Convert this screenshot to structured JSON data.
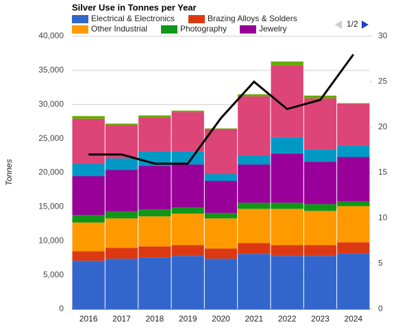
{
  "chart_data": {
    "type": "bar",
    "stacked": true,
    "title": "Silver Use in Tonnes per Year",
    "y_label": "Tonnes",
    "legend_page": "1/2",
    "categories": [
      "2016",
      "2017",
      "2018",
      "2019",
      "2020",
      "2021",
      "2022",
      "2023",
      "2024"
    ],
    "series": [
      {
        "name": "Electrical & Electronics",
        "color": "#3366cc",
        "values": [
          7100,
          7400,
          7600,
          7800,
          7400,
          8100,
          7800,
          7800,
          8200
        ]
      },
      {
        "name": "Brazing Alloys & Solders",
        "color": "#dc3912",
        "values": [
          1400,
          1600,
          1600,
          1600,
          1500,
          1600,
          1600,
          1600,
          1600
        ]
      },
      {
        "name": "Other Industrial",
        "color": "#ff9900",
        "values": [
          4200,
          4300,
          4400,
          4600,
          4400,
          5000,
          5300,
          5000,
          5300
        ]
      },
      {
        "name": "Photography",
        "color": "#109618",
        "values": [
          1100,
          1000,
          1000,
          900,
          800,
          900,
          900,
          1000,
          700
        ]
      },
      {
        "name": "Jewelry",
        "color": "#990099",
        "values": [
          5700,
          6100,
          6400,
          6300,
          4700,
          5600,
          7200,
          6200,
          6500
        ]
      },
      {
        "color": "#0099c6",
        "values": [
          1800,
          1700,
          2100,
          1900,
          1000,
          1300,
          2400,
          1800,
          1700
        ]
      },
      {
        "color": "#dd4477",
        "values": [
          6600,
          4900,
          5000,
          5800,
          6600,
          8700,
          10500,
          7500,
          6100
        ]
      },
      {
        "color": "#66aa00",
        "values": [
          400,
          200,
          300,
          200,
          100,
          300,
          600,
          400,
          100
        ]
      },
      {
        "type": "line",
        "axis": "y2",
        "color": "#000000",
        "values": [
          17,
          17,
          16,
          16,
          21,
          25,
          22,
          23,
          28
        ]
      }
    ],
    "ylim": [
      0,
      40000
    ],
    "yticks": [
      0,
      {
        "value": 5000,
        "label": "5,000"
      },
      {
        "value": 10000,
        "label": "10,000"
      },
      {
        "value": 15000,
        "label": "15,000"
      },
      {
        "value": 20000,
        "label": "20,000"
      },
      {
        "value": 25000,
        "label": "25,000"
      },
      {
        "value": 30000,
        "label": "30,000"
      },
      {
        "value": 35000,
        "label": "35,000"
      },
      {
        "value": 40000,
        "label": "40,000"
      }
    ],
    "y2lim": [
      0,
      30
    ],
    "y2ticks": [
      0,
      5,
      10,
      15,
      20,
      25,
      30
    ],
    "grid": true
  }
}
